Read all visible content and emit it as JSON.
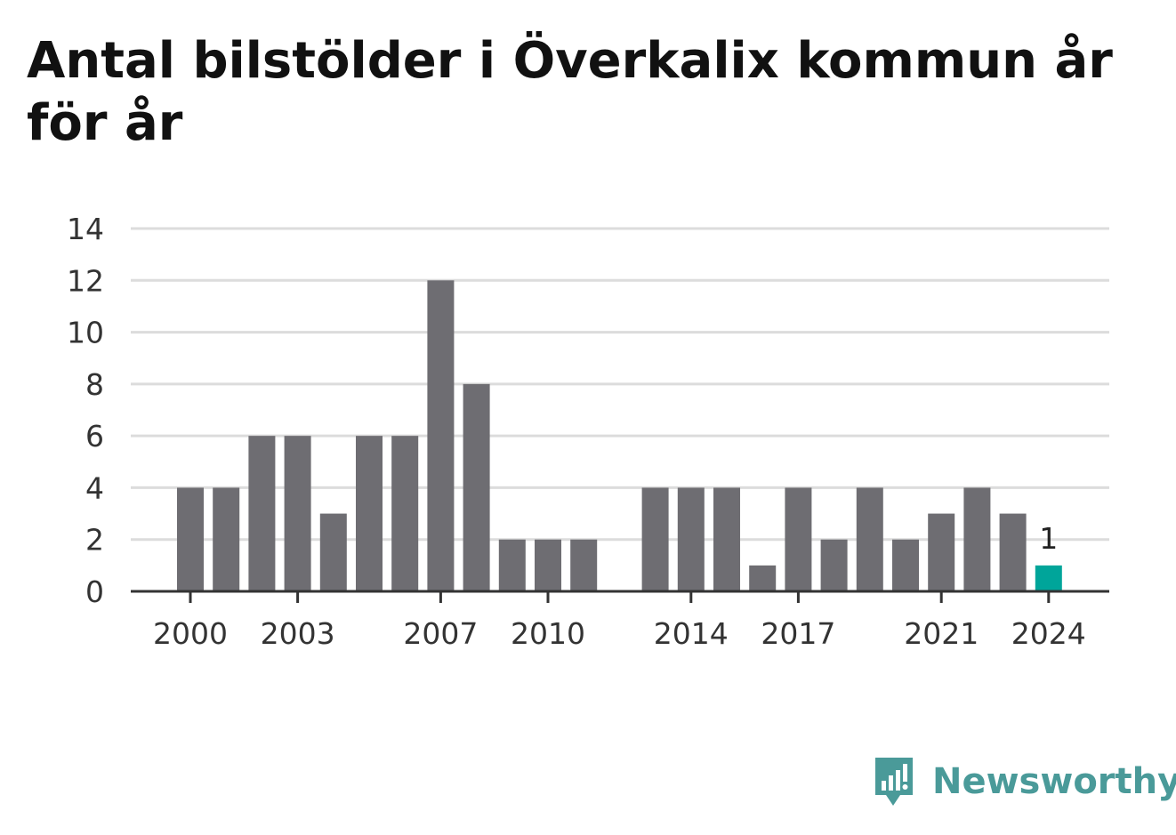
{
  "title": "Antal bilstölder i Överkalix kommun år för år",
  "brand": {
    "name": "Newsworthy",
    "icon": "newsworthy-logo-icon",
    "color": "#4a9a99"
  },
  "chart_data": {
    "type": "bar",
    "x": [
      2000,
      2001,
      2002,
      2003,
      2004,
      2005,
      2006,
      2007,
      2008,
      2009,
      2010,
      2011,
      2012,
      2013,
      2014,
      2015,
      2016,
      2017,
      2018,
      2019,
      2020,
      2021,
      2022,
      2023,
      2024
    ],
    "values": [
      4,
      4,
      6,
      6,
      3,
      6,
      6,
      12,
      8,
      2,
      2,
      2,
      0,
      4,
      4,
      4,
      1,
      4,
      2,
      4,
      2,
      3,
      4,
      3,
      1
    ],
    "ylim": [
      0,
      14
    ],
    "yticks": [
      "0",
      "2",
      "4",
      "6",
      "8",
      "10",
      "12",
      "14"
    ],
    "xticks": [
      "2000",
      "2003",
      "2007",
      "2010",
      "2014",
      "2017",
      "2021",
      "2024"
    ],
    "grid": true,
    "bar_color": "#6e6d72",
    "highlight_color": "#00a59a",
    "highlight_label": "1",
    "xlabel": "",
    "ylabel": ""
  }
}
